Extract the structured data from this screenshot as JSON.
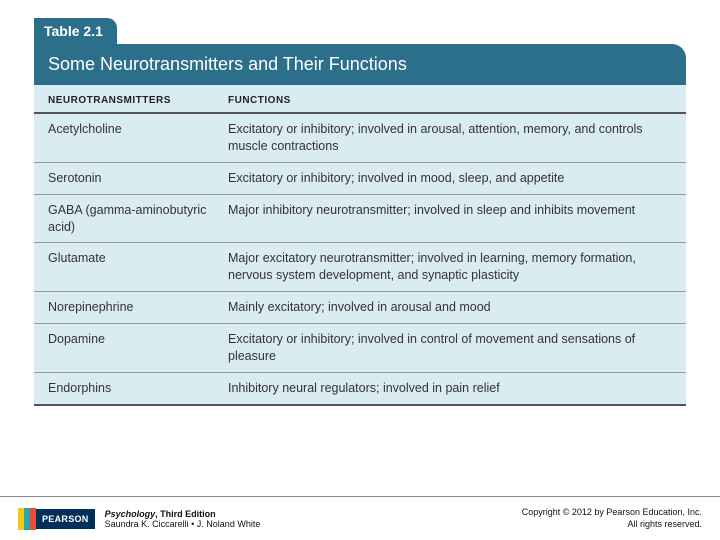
{
  "colors": {
    "label_bg": "#2b6f8a",
    "title_bg": "#2b6f8a",
    "body_bg": "#d8ecf2",
    "stripe1": "#f5c518",
    "stripe2": "#2aa8a8",
    "stripe3": "#e94e3a",
    "logo_bg": "#003057"
  },
  "table": {
    "label": "Table 2.1",
    "title": "Some Neurotransmitters and Their Functions",
    "headers": {
      "col1": "NEUROTRANSMITTERS",
      "col2": "FUNCTIONS"
    },
    "rows": [
      {
        "nt": "Acetylcholine",
        "fn": "Excitatory or inhibitory; involved in arousal, attention, memory, and controls muscle contractions"
      },
      {
        "nt": "Serotonin",
        "fn": "Excitatory or inhibitory; involved in mood, sleep, and appetite"
      },
      {
        "nt": "GABA (gamma-aminobutyric acid)",
        "fn": "Major inhibitory neurotransmitter; involved in sleep and inhibits movement"
      },
      {
        "nt": "Glutamate",
        "fn": "Major excitatory neurotransmitter; involved in learning, memory formation, nervous system development, and  synaptic plasticity"
      },
      {
        "nt": "Norepinephrine",
        "fn": "Mainly excitatory; involved in arousal and mood"
      },
      {
        "nt": "Dopamine",
        "fn": "Excitatory or inhibitory; involved in control of movement and sensations of pleasure"
      },
      {
        "nt": "Endorphins",
        "fn": "Inhibitory neural regulators; involved in pain relief"
      }
    ]
  },
  "footer": {
    "logo_text": "PEARSON",
    "book_title": "Psychology",
    "edition": ", Third Edition",
    "authors": "Saundra K. Ciccarelli • J. Noland White",
    "copyright_line1": "Copyright © 2012 by Pearson Education, Inc.",
    "copyright_line2": "All rights reserved."
  }
}
